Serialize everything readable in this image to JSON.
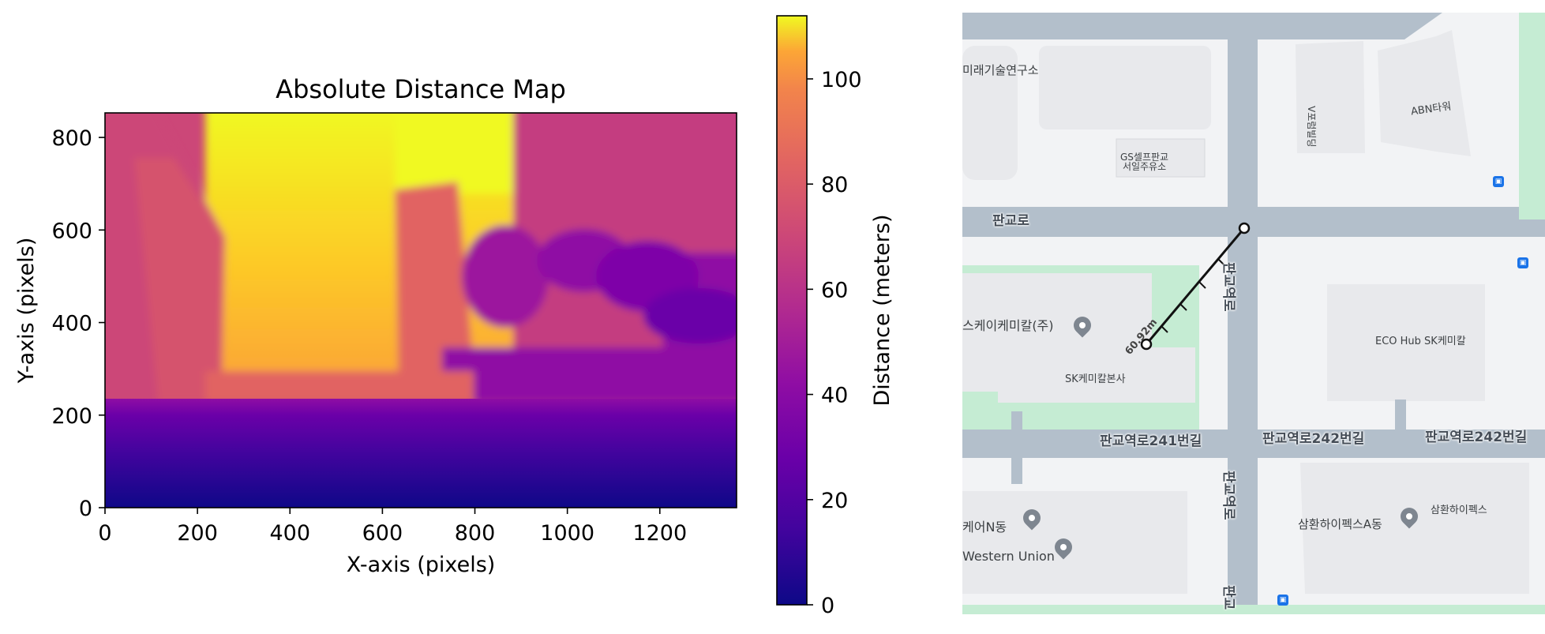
{
  "chart_data": {
    "type": "heatmap",
    "title": "Absolute Distance Map",
    "xlabel": "X-axis (pixels)",
    "ylabel": "Y-axis (pixels)",
    "xlim": [
      0,
      1366
    ],
    "ylim": [
      0,
      853
    ],
    "xticks": [
      0,
      200,
      400,
      600,
      800,
      1000,
      1200
    ],
    "yticks": [
      0,
      200,
      400,
      600,
      800
    ],
    "colormap": "plasma",
    "colorbar": {
      "label": "Distance (meters)",
      "range": [
        0,
        112
      ],
      "ticks": [
        0,
        20,
        40,
        60,
        80,
        100
      ]
    }
  },
  "map": {
    "measurement": "60.92m",
    "labels": {
      "lab": "미래기술연구소",
      "gs": "GS셀프판교\n서일주유소",
      "v": "V포럼빌딩",
      "abn": "ABN타워",
      "road_pangyo": "판교로",
      "skchem_co": "스케이케미칼(주)",
      "skchem_hq": "SK케미칼본사",
      "ecohub": "ECO Hub SK케미칼",
      "road_241": "판교역로241번길",
      "road_242a": "판교역로242번길",
      "road_242b": "판교역로242번길",
      "road_vertical": "판교역로",
      "road_vertical2": "판교역로",
      "road_vertical3": "판교",
      "care": "케어N동",
      "western": "Western Union",
      "samhwan_a": "삼환하이펙스A동",
      "samhwan": "삼환하이펙스"
    },
    "colors": {
      "road": "#b3bfcb",
      "block": "#e8e9ec",
      "park": "#c5ecd3",
      "ground": "#f2f3f5",
      "bus": "#1a73e8"
    }
  }
}
